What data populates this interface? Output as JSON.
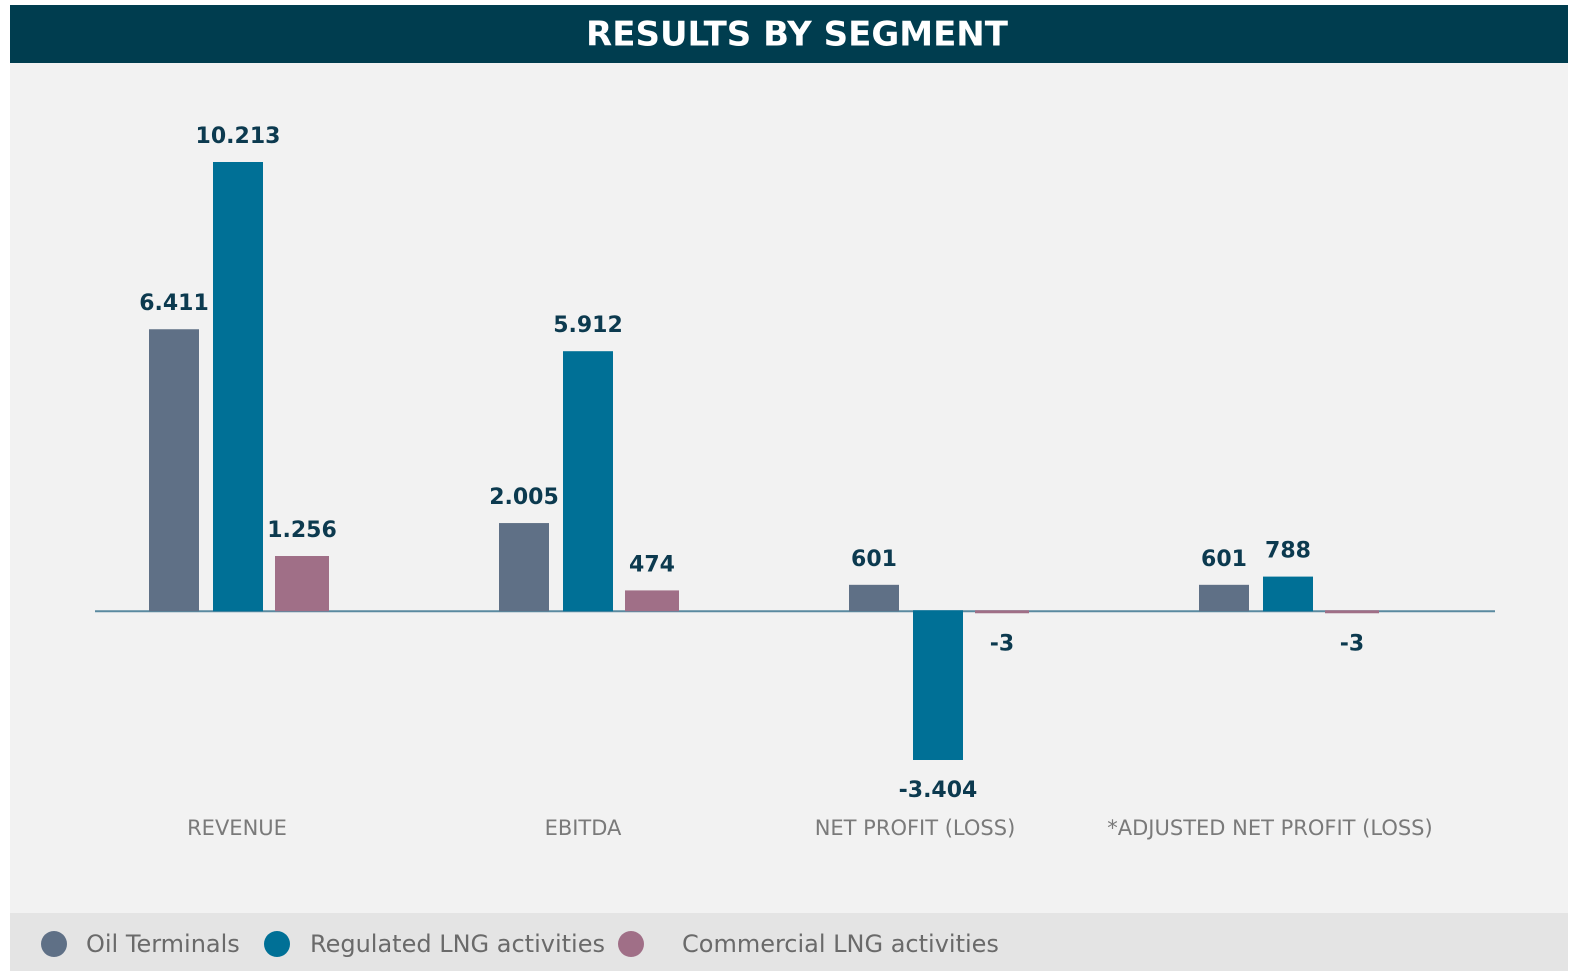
{
  "chart_data": {
    "type": "bar",
    "title": "RESULTS BY SEGMENT",
    "categories": [
      "REVENUE",
      "EBITDA",
      "NET PROFIT (LOSS)",
      "*ADJUSTED NET PROFIT (LOSS)"
    ],
    "series": [
      {
        "name": "Oil Terminals",
        "color": "#5f7086",
        "values": [
          6411,
          2005,
          601,
          601
        ],
        "value_labels": [
          "6.411",
          "2.005",
          "601",
          "601"
        ]
      },
      {
        "name": "Regulated LNG activities",
        "color": "#007096",
        "values": [
          10213,
          5912,
          -3404,
          788
        ],
        "value_labels": [
          "10.213",
          "5.912",
          "-3.404",
          "788"
        ]
      },
      {
        "name": "Commercial LNG activities",
        "color": "#a06f87",
        "values": [
          1256,
          474,
          -3,
          -3
        ],
        "value_labels": [
          "1.256",
          "474",
          "-3",
          "-3"
        ]
      }
    ]
  }
}
